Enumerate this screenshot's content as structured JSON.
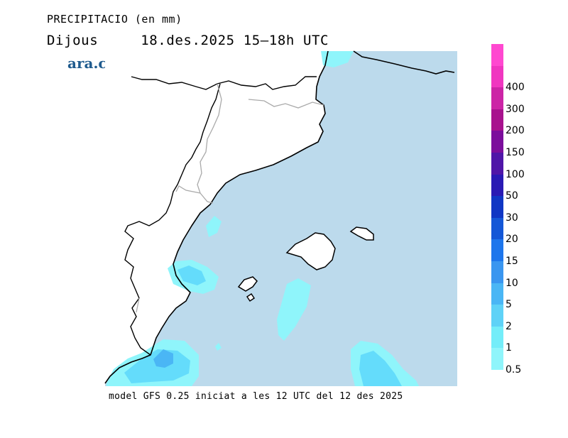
{
  "header": {
    "title": "PRECIPITACIO (en mm)",
    "day": "Dijous",
    "date_time": "18.des.2025 15–18h UTC"
  },
  "logo": {
    "text": "ara.cat",
    "color": "#1f5b8e"
  },
  "footer": {
    "model_info": "model GFS 0.25 iniciat a les 12 UTC del 12 des 2025"
  },
  "colors": {
    "sea": "#bcdaec",
    "land": "#ffffff",
    "coast": "#000000",
    "border": "#aaaaaa",
    "precip_light": "#8ff5fb",
    "precip_medium": "#64dcfb",
    "precip_strong": "#4ab6f5"
  },
  "legend": {
    "thresholds": [
      {
        "label": "0.5",
        "color": "#8ff5fb"
      },
      {
        "label": "1",
        "color": "#74edf9"
      },
      {
        "label": "2",
        "color": "#5fd2f7"
      },
      {
        "label": "5",
        "color": "#4ab6f5"
      },
      {
        "label": "10",
        "color": "#3a96f0"
      },
      {
        "label": "15",
        "color": "#1e76ec"
      },
      {
        "label": "20",
        "color": "#1457d7"
      },
      {
        "label": "30",
        "color": "#1036c4"
      },
      {
        "label": "50",
        "color": "#2a1ab4"
      },
      {
        "label": "100",
        "color": "#5016a8"
      },
      {
        "label": "150",
        "color": "#7c0e9c"
      },
      {
        "label": "200",
        "color": "#a8128e"
      },
      {
        "label": "300",
        "color": "#cc24a6"
      },
      {
        "label": "400",
        "color": "#f036c0"
      }
    ],
    "top_color": "#ff48d0"
  }
}
